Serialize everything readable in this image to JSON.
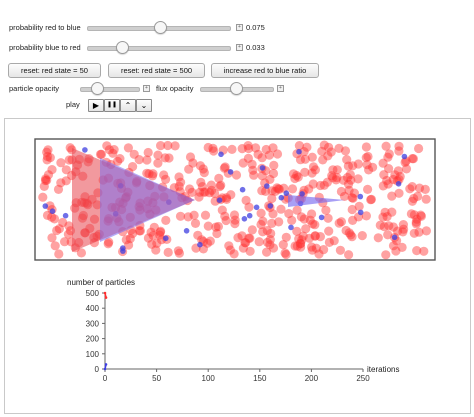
{
  "controls": {
    "slider_red_to_blue": {
      "label": "probability red to blue",
      "value_text": "0.075",
      "value": 0.075
    },
    "slider_blue_to_red": {
      "label": "probability blue to red",
      "value_text": "0.033",
      "value": 0.033
    },
    "buttons": {
      "reset_50": "reset: red state = 50",
      "reset_500": "reset: red state = 500",
      "increase_ratio": "increase red to blue ratio"
    },
    "particle_opacity": {
      "label": "particle opacity"
    },
    "flux_opacity": {
      "label": "flux opacity"
    },
    "play": {
      "label": "play",
      "play_glyph": "▶",
      "pause_glyph": "❚❚",
      "faster_glyph": "⌃",
      "slower_glyph": "⌄"
    },
    "icons": [
      "play-icon",
      "pause-icon",
      "speed-up-icon",
      "slow-down-icon",
      "plus-icon"
    ]
  },
  "colors": {
    "red": "#ff3030",
    "blue": "#3f3fe0",
    "triangle_red": "#e8464e",
    "triangle_blue": "#7a6cf0"
  },
  "chart_data": {
    "type": "line",
    "ylabel": "number of particles",
    "xlabel": "iterations",
    "xlim": [
      0,
      250
    ],
    "ylim": [
      0,
      500
    ],
    "xticks": [
      "0",
      "50",
      "100",
      "150",
      "200",
      "250"
    ],
    "yticks": [
      "0",
      "100",
      "200",
      "300",
      "400",
      "500"
    ],
    "series": [
      {
        "color": "#ff3030",
        "x": [
          0,
          1
        ],
        "y": [
          500,
          470
        ]
      },
      {
        "color": "#3f3fe0",
        "x": [
          0,
          1
        ],
        "y": [
          0,
          30
        ]
      }
    ]
  }
}
